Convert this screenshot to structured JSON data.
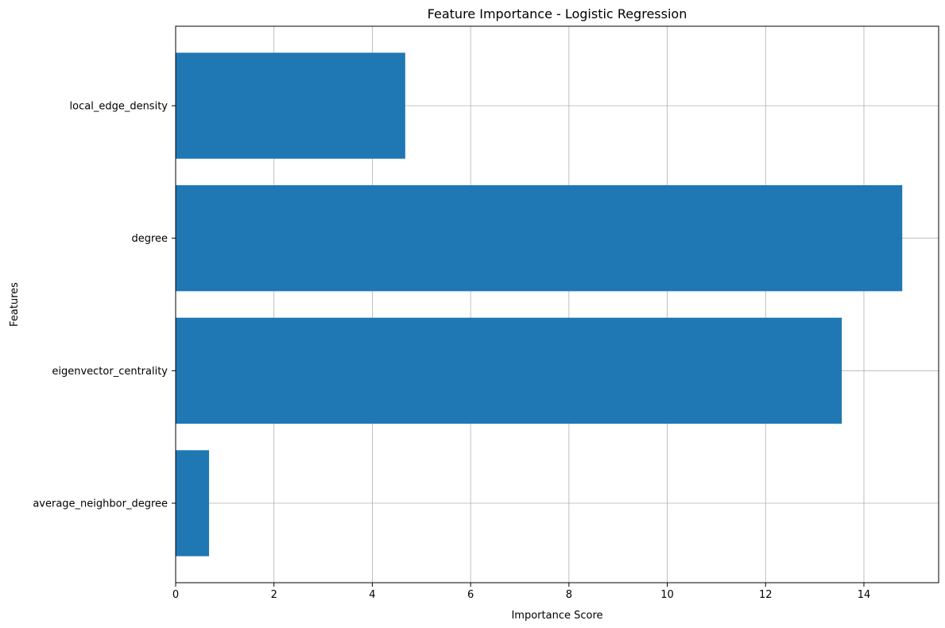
{
  "chart_data": {
    "type": "bar",
    "orientation": "horizontal",
    "title": "Feature Importance - Logistic Regression",
    "xlabel": "Importance Score",
    "ylabel": "Features",
    "categories": [
      "average_neighbor_degree",
      "eigenvector_centrality",
      "degree",
      "local_edge_density"
    ],
    "values": [
      0.68,
      13.55,
      14.78,
      4.67
    ],
    "xlim": [
      0,
      15.52
    ],
    "xticks": [
      0,
      2,
      4,
      6,
      8,
      10,
      12,
      14
    ],
    "xtick_labels": [
      "0",
      "2",
      "4",
      "6",
      "8",
      "10",
      "12",
      "14"
    ],
    "grid": true,
    "bar_color": "#1f77b4"
  }
}
